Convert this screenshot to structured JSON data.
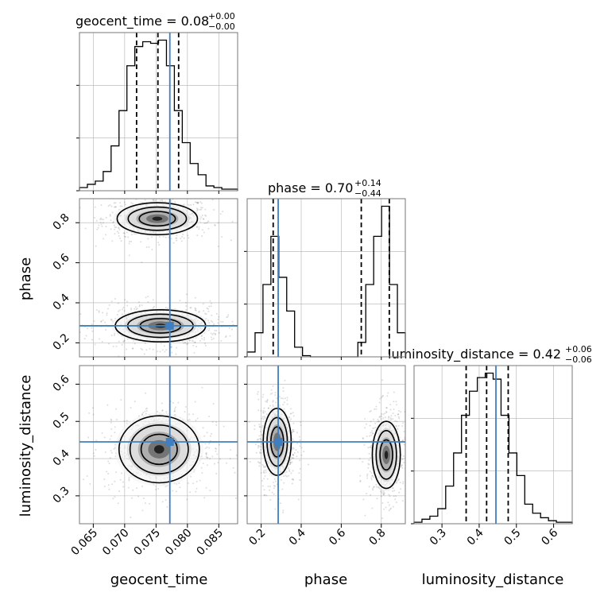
{
  "chart_data": {
    "type": "corner",
    "parameters": [
      "geocent_time",
      "phase",
      "luminosity_distance"
    ],
    "colors": {
      "truth": "#3f7fbf",
      "hist": "#000000",
      "grid": "#b0b0b0"
    },
    "truths": {
      "geocent_time": 0.0772,
      "phase": 0.285,
      "luminosity_distance": 0.445
    },
    "titles": [
      {
        "name": "geocent_time",
        "value": "0.08",
        "upper": "+0.00",
        "lower": "−0.00"
      },
      {
        "name": "phase",
        "value": "0.70",
        "upper": "+0.14",
        "lower": "−0.44"
      },
      {
        "name": "luminosity_distance",
        "value": "0.42",
        "upper": "+0.06",
        "lower": "−0.06"
      }
    ],
    "ranges": {
      "geocent_time": [
        0.0628,
        0.088
      ],
      "phase": [
        0.13,
        0.92
      ],
      "luminosity_distance": [
        0.225,
        0.65
      ]
    },
    "ticks": {
      "geocent_time": [
        "0.065",
        "0.070",
        "0.075",
        "0.080",
        "0.085"
      ],
      "phase": [
        "0.2",
        "0.4",
        "0.6",
        "0.8"
      ],
      "luminosity_distance": [
        "0.3",
        "0.4",
        "0.5",
        "0.6"
      ]
    },
    "quantiles": {
      "geocent_time": [
        0.0719,
        0.0753,
        0.0786
      ],
      "phase": [
        0.26,
        0.7,
        0.84
      ],
      "luminosity_distance": [
        0.365,
        0.42,
        0.478
      ]
    },
    "histograms": {
      "geocent_time": {
        "edges": [
          0.0628,
          0.06406,
          0.06532,
          0.06658,
          0.06784,
          0.0691,
          0.07036,
          0.07162,
          0.07288,
          0.07414,
          0.0754,
          0.07666,
          0.07792,
          0.07918,
          0.08044,
          0.0817,
          0.08296,
          0.08422,
          0.08548,
          0.08674,
          0.088
        ],
        "values": [
          2,
          4,
          6,
          12,
          28,
          50,
          78,
          90,
          93,
          92,
          94,
          78,
          50,
          30,
          17,
          10,
          3,
          2,
          1,
          1
        ]
      },
      "phase": {
        "edges": [
          0.13,
          0.1695,
          0.209,
          0.2485,
          0.288,
          0.3275,
          0.367,
          0.4065,
          0.446,
          0.4855,
          0.525,
          0.5645,
          0.604,
          0.6435,
          0.683,
          0.7225,
          0.762,
          0.8015,
          0.841,
          0.8805,
          0.92
        ],
        "values": [
          4,
          20,
          60,
          100,
          66,
          38,
          8,
          1,
          0,
          0,
          0,
          0,
          0,
          0,
          12,
          60,
          100,
          125,
          60,
          20
        ]
      },
      "luminosity_distance": {
        "edges": [
          0.225,
          0.24625,
          0.2675,
          0.28875,
          0.31,
          0.33125,
          0.3525,
          0.37375,
          0.395,
          0.41625,
          0.4375,
          0.45875,
          0.48,
          0.50125,
          0.5225,
          0.54375,
          0.565,
          0.58625,
          0.6075,
          0.62875,
          0.65
        ],
        "values": [
          1,
          3,
          5,
          10,
          25,
          47,
          72,
          88,
          97,
          100,
          96,
          72,
          47,
          32,
          13,
          7,
          4,
          2,
          1,
          1
        ]
      }
    },
    "joint_modes": {
      "phase_vs_geocent_time": [
        {
          "x": 0.0752,
          "y": 0.82,
          "sx": 0.0032,
          "sy": 0.04
        },
        {
          "x": 0.0757,
          "y": 0.285,
          "sx": 0.0036,
          "sy": 0.04
        }
      ],
      "luminosity_distance_vs_geocent_time": [
        {
          "x": 0.0755,
          "y": 0.425,
          "sx": 0.0032,
          "sy": 0.045
        }
      ],
      "luminosity_distance_vs_phase": [
        {
          "x": 0.28,
          "y": 0.445,
          "sx": 0.035,
          "sy": 0.045
        },
        {
          "x": 0.825,
          "y": 0.41,
          "sx": 0.035,
          "sy": 0.045
        }
      ]
    }
  }
}
